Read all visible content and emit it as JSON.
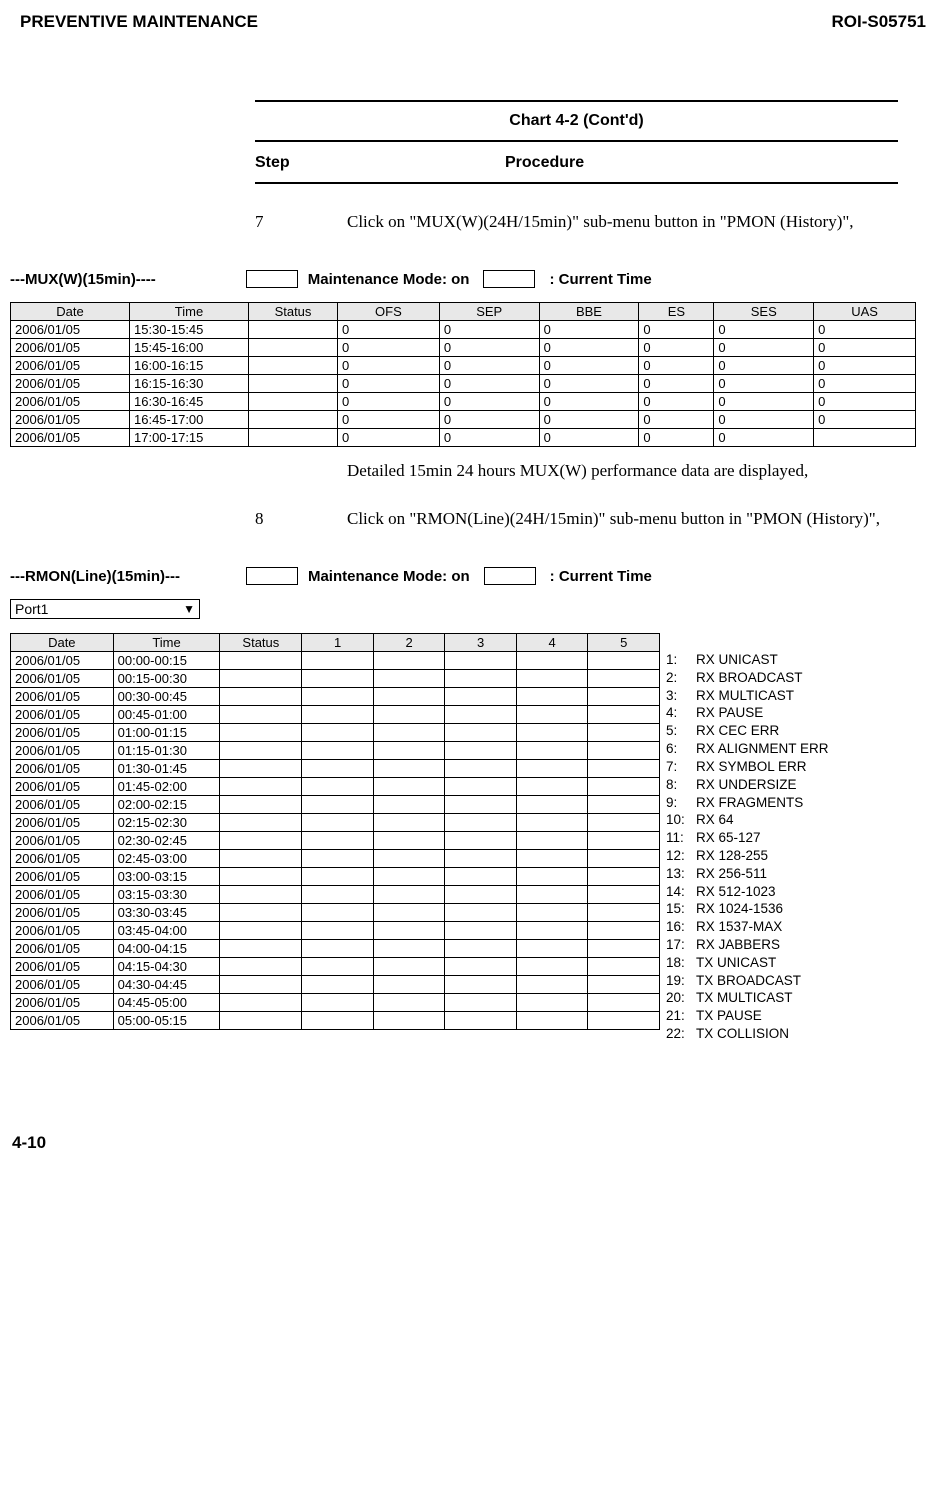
{
  "header": {
    "left": "PREVENTIVE MAINTENANCE",
    "right": "ROI-S05751"
  },
  "chart": {
    "title": "Chart 4-2  (Cont'd)",
    "step_label": "Step",
    "procedure_label": "Procedure"
  },
  "step7": {
    "num": "7",
    "text": "Click on \"MUX(W)(24H/15min)\" sub-menu button in \"PMON (History)\","
  },
  "mux": {
    "section_title": "---MUX(W)(15min)----",
    "mode_label": "Maintenance Mode: on",
    "time_label": ": Current Time",
    "columns": [
      "Date",
      "Time",
      "Status",
      "OFS",
      "SEP",
      "BBE",
      "ES",
      "SES",
      "UAS"
    ],
    "rows": [
      [
        "2006/01/05",
        "15:30-15:45",
        "",
        "0",
        "0",
        "0",
        "0",
        "0",
        "0"
      ],
      [
        "2006/01/05",
        "15:45-16:00",
        "",
        "0",
        "0",
        "0",
        "0",
        "0",
        "0"
      ],
      [
        "2006/01/05",
        "16:00-16:15",
        "",
        "0",
        "0",
        "0",
        "0",
        "0",
        "0"
      ],
      [
        "2006/01/05",
        "16:15-16:30",
        "",
        "0",
        "0",
        "0",
        "0",
        "0",
        "0"
      ],
      [
        "2006/01/05",
        "16:30-16:45",
        "",
        "0",
        "0",
        "0",
        "0",
        "0",
        "0"
      ],
      [
        "2006/01/05",
        "16:45-17:00",
        "",
        "0",
        "0",
        "0",
        "0",
        "0",
        "0"
      ],
      [
        "2006/01/05",
        "17:00-17:15",
        "",
        "0",
        "0",
        "0",
        "0",
        "0",
        ""
      ]
    ],
    "detail": "Detailed 15min 24 hours MUX(W) performance data are displayed,"
  },
  "step8": {
    "num": "8",
    "text": "Click on \"RMON(Line)(24H/15min)\" sub-menu button in \"PMON (History)\","
  },
  "rmon": {
    "section_title": "---RMON(Line)(15min)---",
    "mode_label": "Maintenance Mode: on",
    "time_label": ": Current Time",
    "port": "Port1",
    "columns": [
      "Date",
      "Time",
      "Status",
      "1",
      "2",
      "3",
      "4",
      "5"
    ],
    "rows": [
      [
        "2006/01/05",
        "00:00-00:15",
        "",
        "",
        "",
        "",
        "",
        ""
      ],
      [
        "2006/01/05",
        "00:15-00:30",
        "",
        "",
        "",
        "",
        "",
        ""
      ],
      [
        "2006/01/05",
        "00:30-00:45",
        "",
        "",
        "",
        "",
        "",
        ""
      ],
      [
        "2006/01/05",
        "00:45-01:00",
        "",
        "",
        "",
        "",
        "",
        ""
      ],
      [
        "2006/01/05",
        "01:00-01:15",
        "",
        "",
        "",
        "",
        "",
        ""
      ],
      [
        "2006/01/05",
        "01:15-01:30",
        "",
        "",
        "",
        "",
        "",
        ""
      ],
      [
        "2006/01/05",
        "01:30-01:45",
        "",
        "",
        "",
        "",
        "",
        ""
      ],
      [
        "2006/01/05",
        "01:45-02:00",
        "",
        "",
        "",
        "",
        "",
        ""
      ],
      [
        "2006/01/05",
        "02:00-02:15",
        "",
        "",
        "",
        "",
        "",
        ""
      ],
      [
        "2006/01/05",
        "02:15-02:30",
        "",
        "",
        "",
        "",
        "",
        ""
      ],
      [
        "2006/01/05",
        "02:30-02:45",
        "",
        "",
        "",
        "",
        "",
        ""
      ],
      [
        "2006/01/05",
        "02:45-03:00",
        "",
        "",
        "",
        "",
        "",
        ""
      ],
      [
        "2006/01/05",
        "03:00-03:15",
        "",
        "",
        "",
        "",
        "",
        ""
      ],
      [
        "2006/01/05",
        "03:15-03:30",
        "",
        "",
        "",
        "",
        "",
        ""
      ],
      [
        "2006/01/05",
        "03:30-03:45",
        "",
        "",
        "",
        "",
        "",
        ""
      ],
      [
        "2006/01/05",
        "03:45-04:00",
        "",
        "",
        "",
        "",
        "",
        ""
      ],
      [
        "2006/01/05",
        "04:00-04:15",
        "",
        "",
        "",
        "",
        "",
        ""
      ],
      [
        "2006/01/05",
        "04:15-04:30",
        "",
        "",
        "",
        "",
        "",
        ""
      ],
      [
        "2006/01/05",
        "04:30-04:45",
        "",
        "",
        "",
        "",
        "",
        ""
      ],
      [
        "2006/01/05",
        "04:45-05:00",
        "",
        "",
        "",
        "",
        "",
        ""
      ],
      [
        "2006/01/05",
        "05:00-05:15",
        "",
        "",
        "",
        "",
        "",
        ""
      ]
    ],
    "legend": [
      [
        "1:",
        "RX UNICAST"
      ],
      [
        "2:",
        "RX BROADCAST"
      ],
      [
        "3:",
        "RX MULTICAST"
      ],
      [
        "4:",
        "RX PAUSE"
      ],
      [
        "5:",
        "RX CEC ERR"
      ],
      [
        "6:",
        "RX ALIGNMENT ERR"
      ],
      [
        "7:",
        "RX SYMBOL ERR"
      ],
      [
        "8:",
        "RX UNDERSIZE"
      ],
      [
        "9:",
        "RX FRAGMENTS"
      ],
      [
        "10:",
        "RX 64"
      ],
      [
        "11:",
        "RX 65-127"
      ],
      [
        "12:",
        "RX 128-255"
      ],
      [
        "13:",
        "RX 256-511"
      ],
      [
        "14:",
        "RX 512-1023"
      ],
      [
        "15:",
        "RX 1024-1536"
      ],
      [
        "16:",
        "RX 1537-MAX"
      ],
      [
        "17:",
        "RX JABBERS"
      ],
      [
        "18:",
        "TX UNICAST"
      ],
      [
        "19:",
        "TX BROADCAST"
      ],
      [
        "20:",
        "TX MULTICAST"
      ],
      [
        "21:",
        "TX PAUSE"
      ],
      [
        "22:",
        "TX COLLISION"
      ]
    ]
  },
  "footer": {
    "page": "4-10"
  }
}
